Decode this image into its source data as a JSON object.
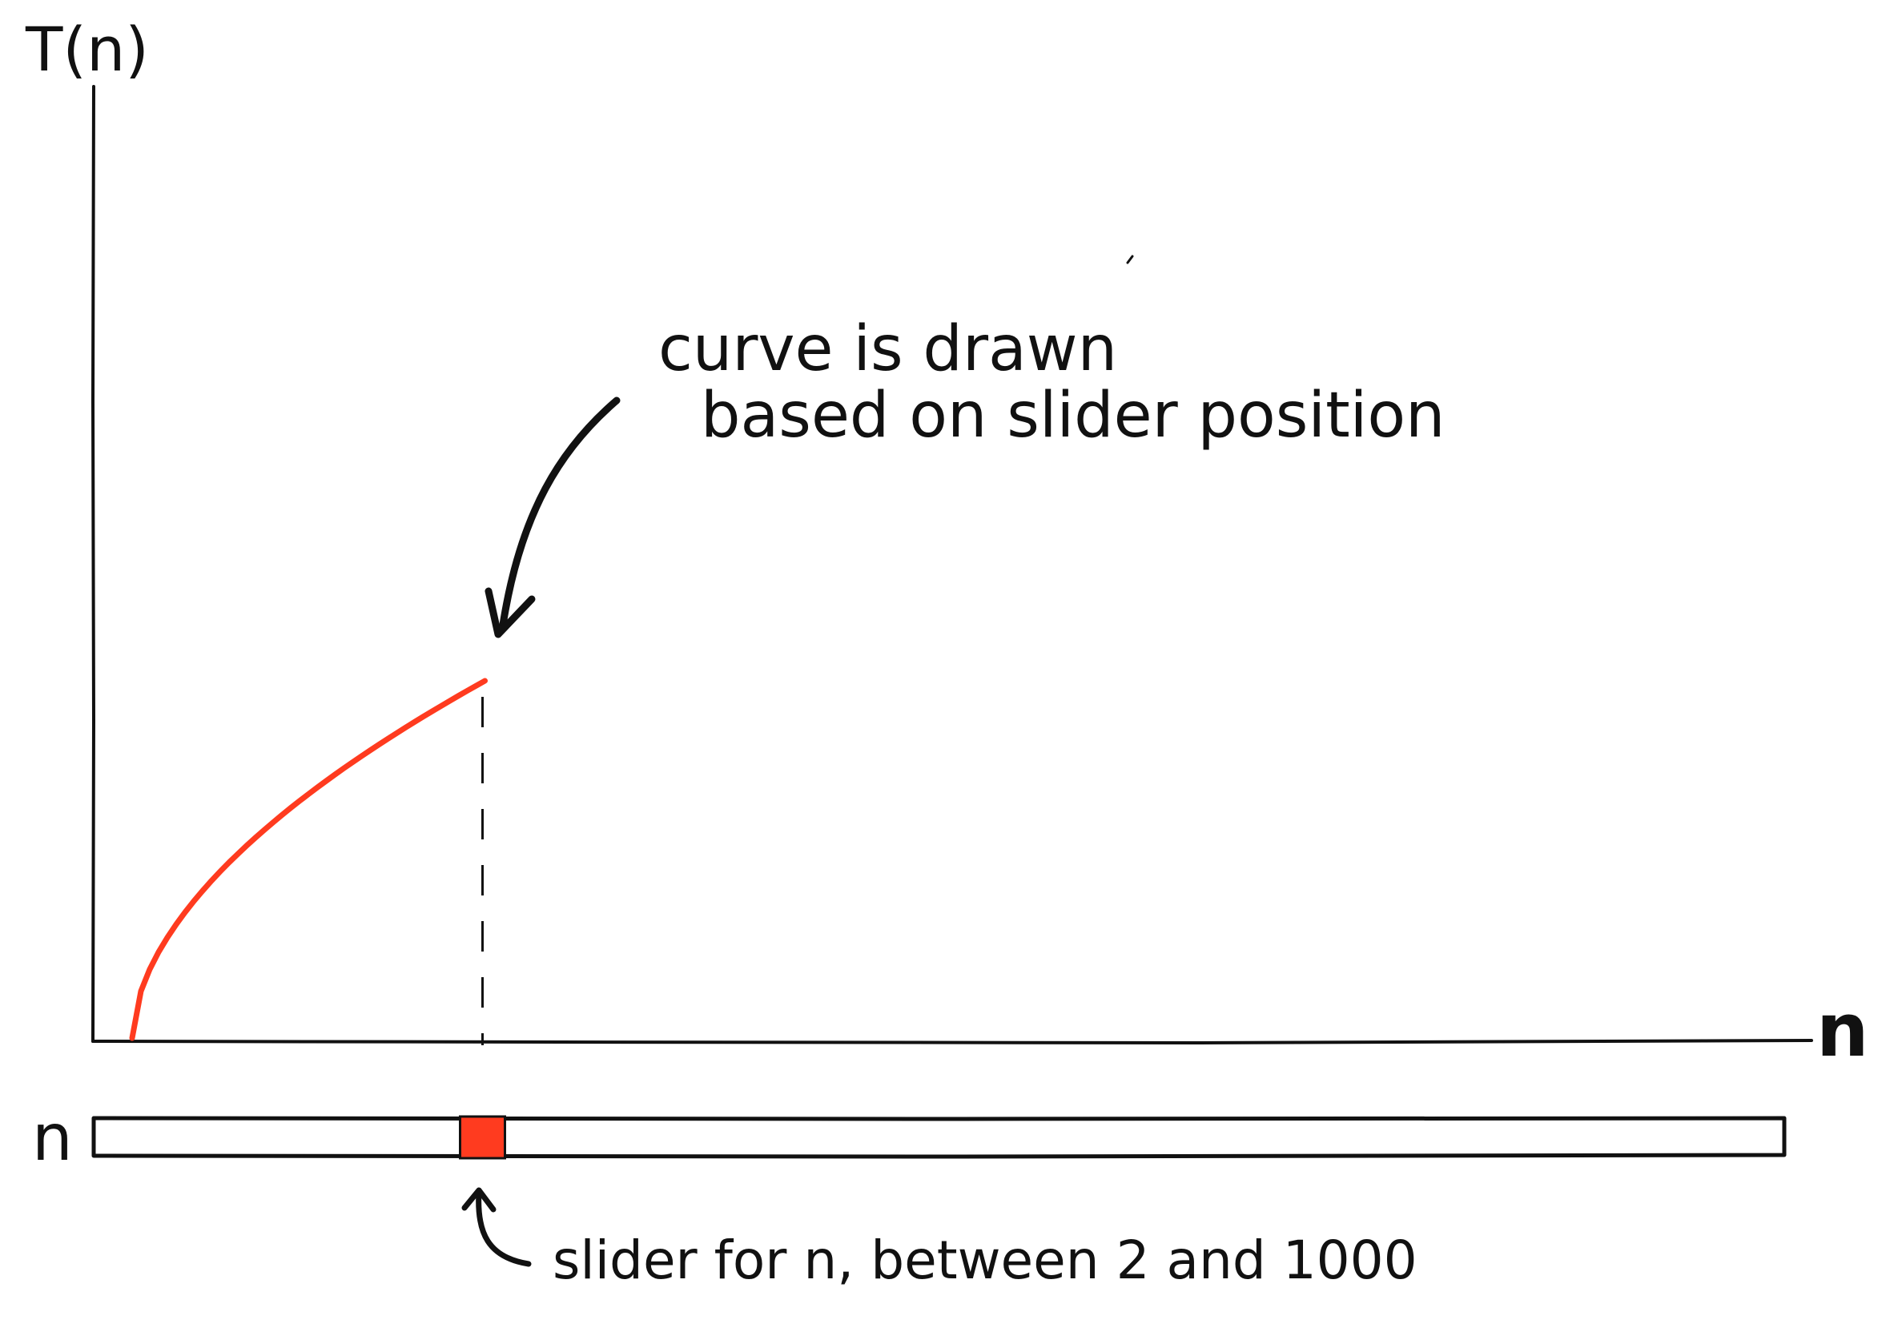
{
  "axes": {
    "y_label": "T(n)",
    "x_label": "n"
  },
  "curve": {
    "color": "#ff3b1f",
    "shape": "concave-increasing"
  },
  "annotation_curve": {
    "line1": "curve is drawn",
    "line2": "based on slider position"
  },
  "slider": {
    "label": "n",
    "min": 2,
    "max": 1000,
    "value_fraction": 0.23,
    "thumb_color": "#ff3b1f",
    "caption": "slider for n, between 2 and 1000"
  }
}
